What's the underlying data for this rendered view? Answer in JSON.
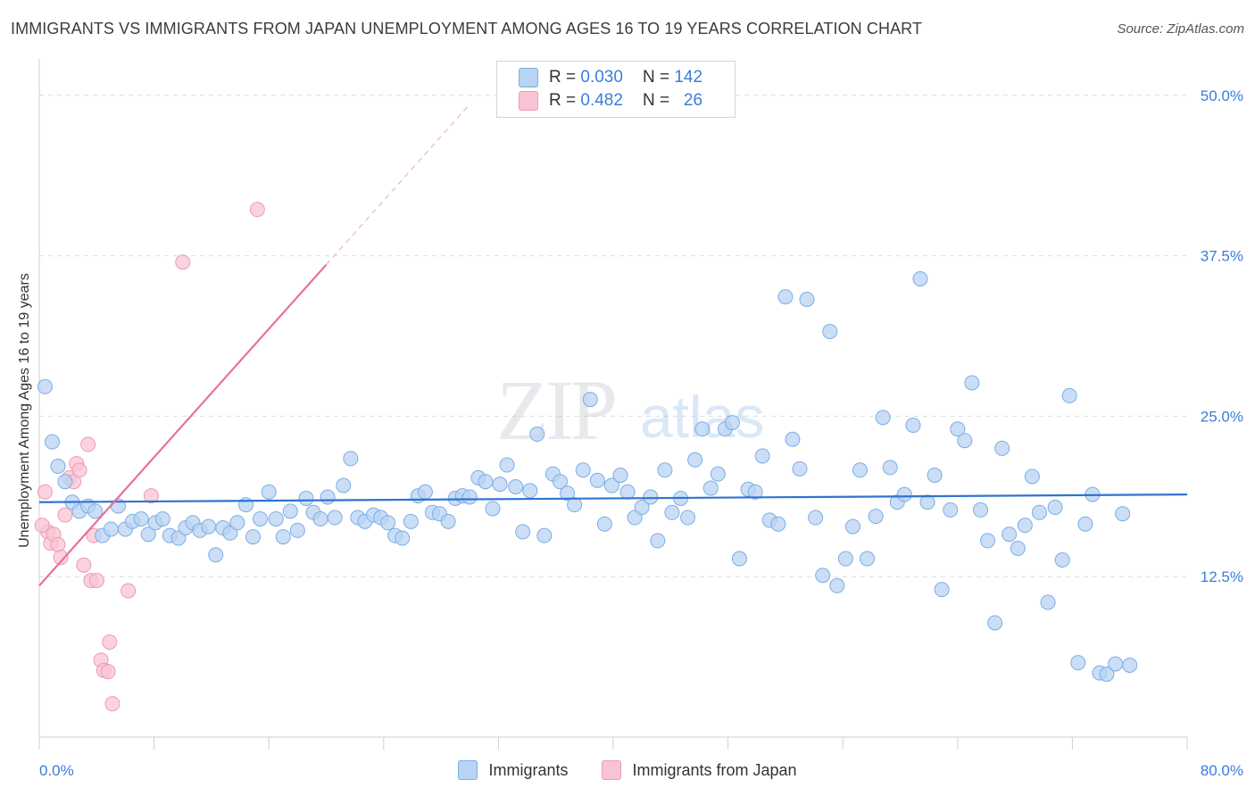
{
  "header": {
    "title": "IMMIGRANTS VS IMMIGRANTS FROM JAPAN UNEMPLOYMENT AMONG AGES 16 TO 19 YEARS CORRELATION CHART",
    "source": "Source: ZipAtlas.com"
  },
  "legend": {
    "immigrants": {
      "r_label": "R =",
      "r_value": "0.030",
      "n_label": "N =",
      "n_value": "142"
    },
    "japan": {
      "r_label": "R =",
      "r_value": "0.482",
      "n_label": "N =",
      "n_value": "26"
    }
  },
  "bottom_legend": {
    "immigrants": "Immigrants",
    "japan": "Immigrants from Japan"
  },
  "watermark": {
    "zip": "ZIP",
    "atlas": "atlas"
  },
  "colors": {
    "blue_fill": "#b9d3f3",
    "blue_stroke": "#7aaee6",
    "blue_line": "#2f74d0",
    "pink_fill": "#f8c4d3",
    "pink_stroke": "#ee9ab2",
    "pink_line": "#e8709a",
    "tick_text": "#3b7dd8",
    "grid": "#dcdcdc"
  },
  "chart_data": {
    "type": "scatter",
    "title": "IMMIGRANTS VS IMMIGRANTS FROM JAPAN UNEMPLOYMENT AMONG AGES 16 TO 19 YEARS CORRELATION CHART",
    "xlabel": "",
    "ylabel": "Unemployment Among Ages 16 to 19 years",
    "xlim": [
      0,
      80
    ],
    "ylim": [
      0,
      52
    ],
    "x_tick_labels": [
      "0.0%",
      "80.0%"
    ],
    "y_ticks": [
      12.5,
      25.0,
      37.5,
      50.0
    ],
    "y_tick_labels": [
      "12.5%",
      "25.0%",
      "37.5%",
      "50.0%"
    ],
    "grid": true,
    "legend_position": "top-center",
    "series": [
      {
        "name": "Immigrants",
        "trend": {
          "x": [
            0,
            80
          ],
          "y": [
            18.3,
            18.9
          ]
        },
        "points": [
          [
            0.4,
            27.3
          ],
          [
            0.9,
            23.0
          ],
          [
            1.3,
            21.1
          ],
          [
            1.8,
            19.9
          ],
          [
            2.3,
            18.3
          ],
          [
            2.8,
            17.6
          ],
          [
            3.4,
            18.0
          ],
          [
            3.9,
            17.6
          ],
          [
            4.4,
            15.7
          ],
          [
            5.0,
            16.2
          ],
          [
            5.5,
            18.0
          ],
          [
            6.0,
            16.2
          ],
          [
            6.5,
            16.8
          ],
          [
            7.1,
            17.0
          ],
          [
            7.6,
            15.8
          ],
          [
            8.1,
            16.7
          ],
          [
            8.6,
            17.0
          ],
          [
            9.1,
            15.7
          ],
          [
            9.7,
            15.5
          ],
          [
            10.2,
            16.3
          ],
          [
            10.7,
            16.7
          ],
          [
            11.2,
            16.1
          ],
          [
            11.8,
            16.4
          ],
          [
            12.3,
            14.2
          ],
          [
            12.8,
            16.3
          ],
          [
            13.3,
            15.9
          ],
          [
            13.8,
            16.7
          ],
          [
            14.4,
            18.1
          ],
          [
            14.9,
            15.6
          ],
          [
            15.4,
            17.0
          ],
          [
            16.0,
            19.1
          ],
          [
            16.5,
            17.0
          ],
          [
            17.0,
            15.6
          ],
          [
            17.5,
            17.6
          ],
          [
            18.0,
            16.1
          ],
          [
            18.6,
            18.6
          ],
          [
            19.1,
            17.5
          ],
          [
            19.6,
            17.0
          ],
          [
            20.1,
            18.7
          ],
          [
            20.6,
            17.1
          ],
          [
            21.2,
            19.6
          ],
          [
            21.7,
            21.7
          ],
          [
            22.2,
            17.1
          ],
          [
            22.7,
            16.8
          ],
          [
            23.3,
            17.3
          ],
          [
            23.8,
            17.1
          ],
          [
            24.3,
            16.7
          ],
          [
            24.8,
            15.7
          ],
          [
            25.3,
            15.5
          ],
          [
            25.9,
            16.8
          ],
          [
            26.4,
            18.8
          ],
          [
            26.9,
            19.1
          ],
          [
            27.4,
            17.5
          ],
          [
            27.9,
            17.4
          ],
          [
            28.5,
            16.8
          ],
          [
            29.0,
            18.6
          ],
          [
            29.5,
            18.8
          ],
          [
            30.0,
            18.7
          ],
          [
            30.6,
            20.2
          ],
          [
            31.1,
            19.9
          ],
          [
            31.6,
            17.8
          ],
          [
            32.1,
            19.7
          ],
          [
            32.6,
            21.2
          ],
          [
            33.2,
            19.5
          ],
          [
            33.7,
            16.0
          ],
          [
            34.2,
            19.2
          ],
          [
            34.7,
            23.6
          ],
          [
            35.2,
            15.7
          ],
          [
            35.8,
            20.5
          ],
          [
            36.3,
            19.9
          ],
          [
            36.8,
            19.0
          ],
          [
            37.3,
            18.1
          ],
          [
            37.9,
            20.8
          ],
          [
            38.4,
            26.3
          ],
          [
            38.9,
            20.0
          ],
          [
            39.4,
            16.6
          ],
          [
            39.9,
            19.6
          ],
          [
            40.5,
            20.4
          ],
          [
            41.0,
            19.1
          ],
          [
            41.5,
            17.1
          ],
          [
            42.0,
            17.9
          ],
          [
            42.6,
            18.7
          ],
          [
            43.1,
            15.3
          ],
          [
            43.6,
            20.8
          ],
          [
            44.1,
            17.5
          ],
          [
            44.7,
            18.6
          ],
          [
            45.2,
            17.1
          ],
          [
            45.7,
            21.6
          ],
          [
            46.2,
            24.0
          ],
          [
            46.8,
            19.4
          ],
          [
            47.3,
            20.5
          ],
          [
            47.8,
            24.0
          ],
          [
            48.3,
            24.5
          ],
          [
            48.8,
            13.9
          ],
          [
            49.4,
            19.3
          ],
          [
            49.9,
            19.1
          ],
          [
            50.4,
            21.9
          ],
          [
            50.9,
            16.9
          ],
          [
            51.5,
            16.6
          ],
          [
            52.0,
            34.3
          ],
          [
            52.5,
            23.2
          ],
          [
            53.0,
            20.9
          ],
          [
            53.5,
            34.1
          ],
          [
            54.1,
            17.1
          ],
          [
            54.6,
            12.6
          ],
          [
            55.1,
            31.6
          ],
          [
            55.6,
            11.8
          ],
          [
            56.2,
            13.9
          ],
          [
            56.7,
            16.4
          ],
          [
            57.2,
            20.8
          ],
          [
            57.7,
            13.9
          ],
          [
            58.3,
            17.2
          ],
          [
            58.8,
            24.9
          ],
          [
            59.3,
            21.0
          ],
          [
            59.8,
            18.3
          ],
          [
            60.3,
            18.9
          ],
          [
            60.9,
            24.3
          ],
          [
            61.4,
            35.7
          ],
          [
            61.9,
            18.3
          ],
          [
            62.4,
            20.4
          ],
          [
            62.9,
            11.5
          ],
          [
            63.5,
            17.7
          ],
          [
            64.0,
            24.0
          ],
          [
            64.5,
            23.1
          ],
          [
            65.0,
            27.6
          ],
          [
            65.6,
            17.7
          ],
          [
            66.1,
            15.3
          ],
          [
            66.6,
            8.9
          ],
          [
            67.1,
            22.5
          ],
          [
            67.6,
            15.8
          ],
          [
            68.2,
            14.7
          ],
          [
            68.7,
            16.5
          ],
          [
            69.2,
            20.3
          ],
          [
            69.7,
            17.5
          ],
          [
            70.3,
            10.5
          ],
          [
            70.8,
            17.9
          ],
          [
            71.3,
            13.8
          ],
          [
            71.8,
            26.6
          ],
          [
            72.4,
            5.8
          ],
          [
            72.9,
            16.6
          ],
          [
            73.4,
            18.9
          ],
          [
            73.9,
            5.0
          ],
          [
            74.4,
            4.9
          ],
          [
            75.0,
            5.7
          ],
          [
            75.5,
            17.4
          ],
          [
            76.0,
            5.6
          ]
        ]
      },
      {
        "name": "Immigrants from Japan",
        "trend": {
          "x": [
            0,
            20
          ],
          "y": [
            11.8,
            36.8
          ]
        },
        "trend_extension": {
          "x": [
            20,
            30
          ],
          "y": [
            36.8,
            49.3
          ]
        },
        "points": [
          [
            0.4,
            19.1
          ],
          [
            0.6,
            16.0
          ],
          [
            0.8,
            15.1
          ],
          [
            1.0,
            15.8
          ],
          [
            1.3,
            15.0
          ],
          [
            1.5,
            14.0
          ],
          [
            1.8,
            17.3
          ],
          [
            2.1,
            20.2
          ],
          [
            2.4,
            19.9
          ],
          [
            2.6,
            21.3
          ],
          [
            2.8,
            20.8
          ],
          [
            3.1,
            13.4
          ],
          [
            3.4,
            22.8
          ],
          [
            3.6,
            12.2
          ],
          [
            3.8,
            15.7
          ],
          [
            4.0,
            12.2
          ],
          [
            4.3,
            6.0
          ],
          [
            4.5,
            5.2
          ],
          [
            4.8,
            5.1
          ],
          [
            4.9,
            7.4
          ],
          [
            5.1,
            2.6
          ],
          [
            6.2,
            11.4
          ],
          [
            7.8,
            18.8
          ],
          [
            10.0,
            37.0
          ],
          [
            15.2,
            41.1
          ],
          [
            0.2,
            16.5
          ]
        ]
      }
    ]
  }
}
